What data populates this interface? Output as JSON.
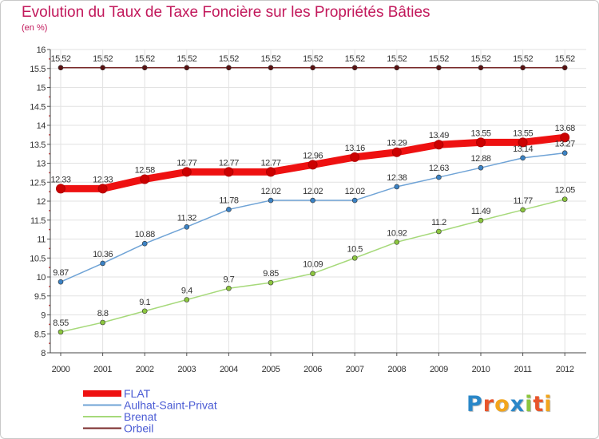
{
  "title": "Evolution du Taux de Taxe Foncière sur les Propriétés Bâties",
  "unit_label": "(en %)",
  "logo": {
    "letters": [
      "P",
      "r",
      "o",
      "x",
      "i",
      "t",
      "i"
    ],
    "colors": [
      "#2a87c8",
      "#e8542a",
      "#f2a51c",
      "#2a87c8",
      "#8cc63f",
      "#e8542a",
      "#f2a51c"
    ]
  },
  "chart_data": {
    "type": "line",
    "title": "Evolution du Taux de Taxe Foncière sur les Propriétés Bâties",
    "ylabel": "(en %)",
    "xlabel": "",
    "x": [
      "2000",
      "2001",
      "2002",
      "2003",
      "2004",
      "2005",
      "2006",
      "2007",
      "2008",
      "2009",
      "2010",
      "2011",
      "2012"
    ],
    "ylim": [
      8,
      16
    ],
    "yticks": [
      "8",
      "8.5",
      "9",
      "9.5",
      "10",
      "10.5",
      "11",
      "11.5",
      "12",
      "12.5",
      "13",
      "13.5",
      "14",
      "14.5",
      "15",
      "15.5",
      "16"
    ],
    "grid": true,
    "legend_position": "bottom-left",
    "series": [
      {
        "name": "FLAT",
        "color": "#ee1111",
        "point_color": "#cc0000",
        "emphasis": "thick",
        "values": [
          12.33,
          12.33,
          12.58,
          12.77,
          12.77,
          12.77,
          12.96,
          13.16,
          13.29,
          13.49,
          13.55,
          13.55,
          13.68
        ],
        "labels": [
          "12.33",
          "12.33",
          "12.58",
          "12.77",
          "12.77",
          "12.77",
          "12.96",
          "13.16",
          "13.29",
          "13.49",
          "13.55",
          "13.55",
          "13.68"
        ]
      },
      {
        "name": "Aulhat-Saint-Privat",
        "color": "#6fa3d6",
        "point_color": "#3b82c4",
        "emphasis": "normal",
        "values": [
          9.87,
          10.36,
          10.88,
          11.32,
          11.78,
          12.02,
          12.02,
          12.02,
          12.38,
          12.63,
          12.88,
          13.14,
          13.27
        ],
        "labels": [
          "9.87",
          "10.36",
          "10.88",
          "11.32",
          "11.78",
          "12.02",
          "12.02",
          "12.02",
          "12.38",
          "12.63",
          "12.88",
          "13.14",
          "13.27"
        ]
      },
      {
        "name": "Brenat",
        "color": "#a6d97a",
        "point_color": "#8cc63f",
        "emphasis": "normal",
        "values": [
          8.55,
          8.8,
          9.1,
          9.4,
          9.7,
          9.85,
          10.09,
          10.5,
          10.92,
          11.2,
          11.49,
          11.77,
          12.05
        ],
        "labels": [
          "8.55",
          "8.8",
          "9.1",
          "9.4",
          "9.7",
          "9.85",
          "10.09",
          "10.5",
          "10.92",
          "11.2",
          "11.49",
          "11.77",
          "12.05"
        ]
      },
      {
        "name": "Orbeil",
        "color": "#7a2a2a",
        "point_color": "#5a1212",
        "emphasis": "normal",
        "values": [
          15.52,
          15.52,
          15.52,
          15.52,
          15.52,
          15.52,
          15.52,
          15.52,
          15.52,
          15.52,
          15.52,
          15.52,
          15.52
        ],
        "labels": [
          "15.52",
          "15.52",
          "15.52",
          "15.52",
          "15.52",
          "15.52",
          "15.52",
          "15.52",
          "15.52",
          "15.52",
          "15.52",
          "15.52",
          "15.52"
        ]
      }
    ]
  }
}
